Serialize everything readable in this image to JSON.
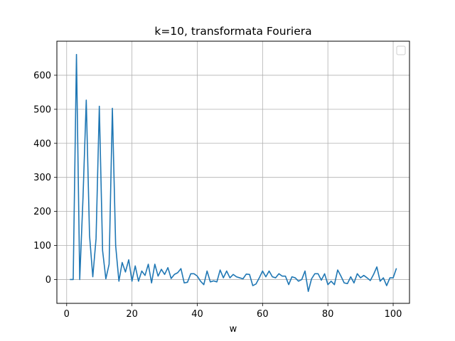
{
  "chart_data": {
    "type": "line",
    "title": "k=10, transformata Fouriera",
    "xlabel": "w",
    "ylabel": "",
    "xlim": [
      -3,
      105
    ],
    "ylim": [
      -70,
      700
    ],
    "xticks": [
      0,
      20,
      40,
      60,
      80,
      100
    ],
    "yticks": [
      0,
      100,
      200,
      300,
      400,
      500,
      600
    ],
    "grid": true,
    "legend": "top-right (empty)",
    "colors": {
      "line": "#1f77b4",
      "grid": "#b0b0b0"
    },
    "series": [
      {
        "x": [
          1,
          2,
          3,
          4,
          5,
          6,
          7,
          8,
          9,
          10,
          11,
          12,
          13,
          14,
          15,
          16,
          17,
          18,
          19,
          20,
          21,
          22,
          23,
          24,
          25,
          26,
          27,
          28,
          29,
          30,
          31,
          32,
          33,
          34,
          35,
          36,
          37,
          38,
          39,
          40,
          41,
          42,
          43,
          44,
          45,
          46,
          47,
          48,
          49,
          50,
          51,
          52,
          53,
          54,
          55,
          56,
          57,
          58,
          59,
          60,
          61,
          62,
          63,
          64,
          65,
          66,
          67,
          68,
          69,
          70,
          71,
          72,
          73,
          74,
          75,
          76,
          77,
          78,
          79,
          80,
          81,
          82,
          83,
          84,
          85,
          86,
          87,
          88,
          89,
          90,
          91,
          92,
          93,
          94,
          95,
          96,
          97,
          98,
          99,
          100,
          101
        ],
        "values": [
          0,
          0,
          661,
          0,
          240,
          527,
          130,
          8,
          120,
          509,
          85,
          2,
          45,
          503,
          100,
          -5,
          50,
          22,
          58,
          -5,
          40,
          -5,
          25,
          12,
          45,
          -10,
          45,
          10,
          30,
          15,
          35,
          3,
          15,
          20,
          32,
          -10,
          -8,
          17,
          17,
          10,
          -5,
          -15,
          25,
          -7,
          -4,
          -7,
          28,
          5,
          25,
          5,
          15,
          8,
          5,
          2,
          16,
          15,
          -18,
          -13,
          5,
          25,
          8,
          25,
          8,
          5,
          17,
          10,
          10,
          -15,
          8,
          5,
          -5,
          0,
          25,
          -35,
          2,
          17,
          17,
          -2,
          17,
          -15,
          -5,
          -15,
          28,
          10,
          -10,
          -12,
          8,
          -10,
          17,
          5,
          12,
          5,
          -3,
          15,
          37,
          -5,
          5,
          -18,
          5,
          5,
          33
        ]
      }
    ]
  }
}
